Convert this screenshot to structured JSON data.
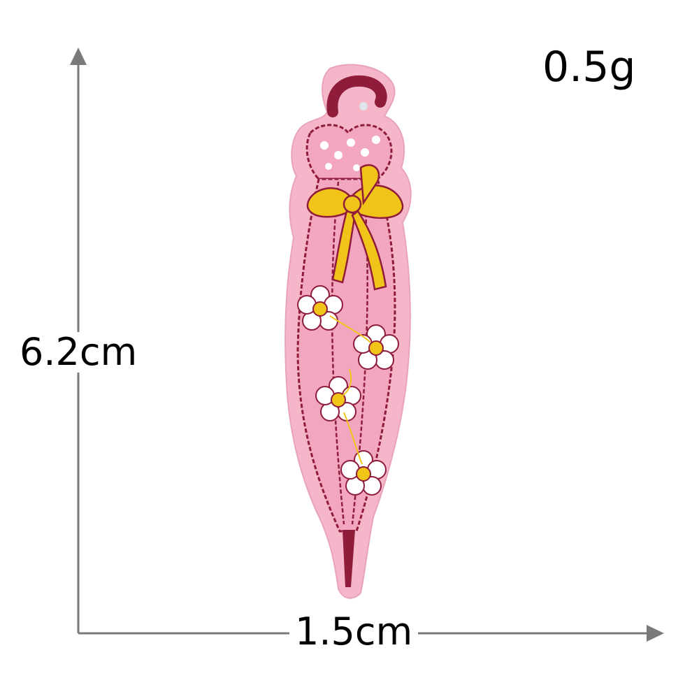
{
  "dimensions": {
    "weight": "0.5g",
    "height": "6.2cm",
    "width": "1.5cm"
  },
  "colors": {
    "axis": "#7a7a7a",
    "felt_pink": "#f6b6c9",
    "thread_pink": "#f3a6bf",
    "outline_maroon": "#8e1c3a",
    "bow_yellow": "#f0c419",
    "flower_white": "#ffffff"
  },
  "subject": {
    "icon": "umbrella-patch-icon"
  }
}
